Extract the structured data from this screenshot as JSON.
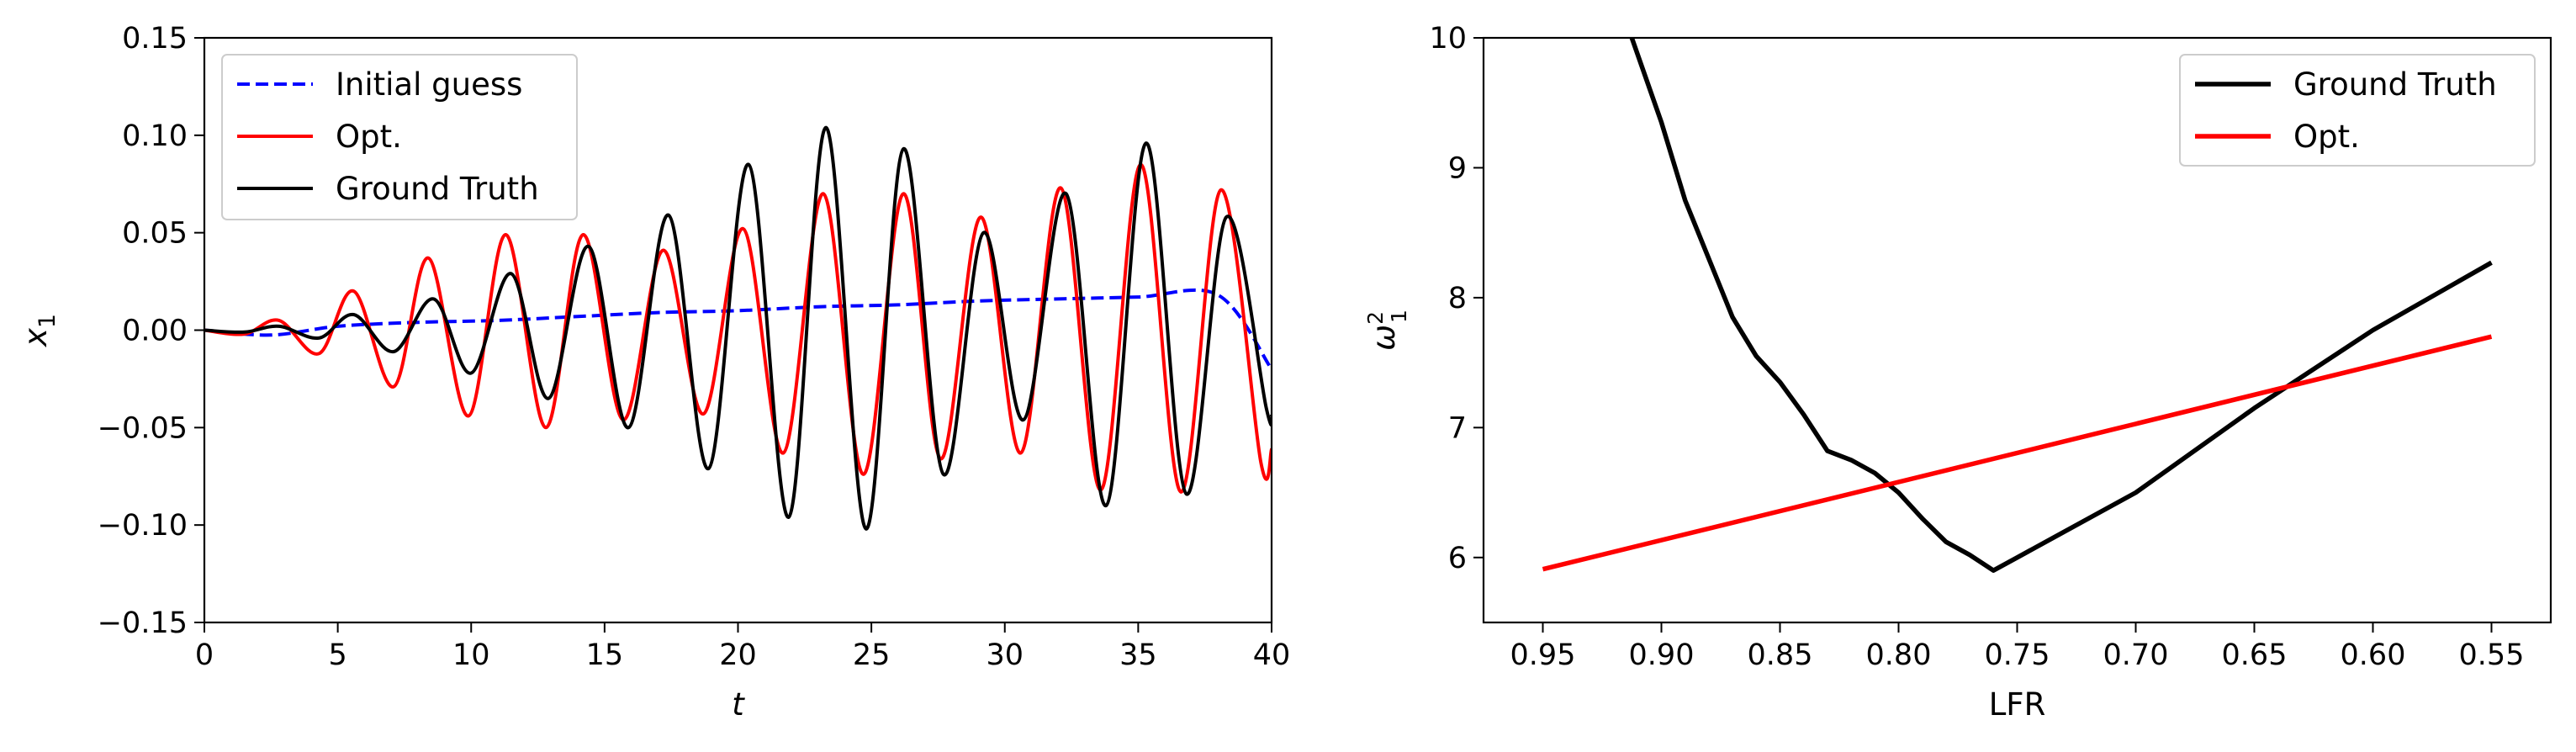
{
  "chart_data": [
    {
      "type": "line",
      "title": "",
      "xlabel": "t",
      "ylabel_base": "x",
      "ylabel_sub": "1",
      "xlim": [
        0,
        40
      ],
      "ylim": [
        -0.15,
        0.15
      ],
      "x_ticks": [
        {
          "value": 0,
          "label": "0"
        },
        {
          "value": 5,
          "label": "5"
        },
        {
          "value": 10,
          "label": "10"
        },
        {
          "value": 15,
          "label": "15"
        },
        {
          "value": 20,
          "label": "20"
        },
        {
          "value": 25,
          "label": "25"
        },
        {
          "value": 30,
          "label": "30"
        },
        {
          "value": 35,
          "label": "35"
        },
        {
          "value": 40,
          "label": "40"
        }
      ],
      "y_ticks": [
        {
          "value": 0.15,
          "label": "0.15"
        },
        {
          "value": 0.1,
          "label": "0.10"
        },
        {
          "value": 0.05,
          "label": "0.05"
        },
        {
          "value": 0.0,
          "label": "0.00"
        },
        {
          "value": -0.05,
          "label": "−0.05"
        },
        {
          "value": -0.1,
          "label": "−0.10"
        },
        {
          "value": -0.15,
          "label": "−0.15"
        }
      ],
      "grid": false,
      "legend_position": "top-left",
      "series": [
        {
          "name": "Initial guess",
          "color": "#0000ff",
          "style": "dashed",
          "x": [
            0,
            2.5,
            5.0,
            8.0,
            11.0,
            14.0,
            17.0,
            20.0,
            23.0,
            26.0,
            29.0,
            32.0,
            35.0,
            38.0,
            40.0
          ],
          "y": [
            0.0,
            -0.0025,
            0.002,
            0.004,
            0.005,
            0.007,
            0.009,
            0.01,
            0.012,
            0.013,
            0.015,
            0.016,
            0.017,
            0.018,
            -0.02
          ]
        },
        {
          "name": "Opt.",
          "color": "#ff0000",
          "style": "solid",
          "x": [
            0,
            1.5,
            2.8,
            4.3,
            5.6,
            7.1,
            8.4,
            9.9,
            11.3,
            12.8,
            14.2,
            15.7,
            17.2,
            18.7,
            20.2,
            21.7,
            23.2,
            24.7,
            26.2,
            27.6,
            29.1,
            30.6,
            32.1,
            33.6,
            35.1,
            36.6,
            38.1,
            39.6,
            40.0
          ],
          "y": [
            0.0,
            -0.002,
            0.005,
            -0.012,
            0.02,
            -0.029,
            0.037,
            -0.044,
            0.049,
            -0.05,
            0.049,
            -0.046,
            0.041,
            -0.043,
            0.052,
            -0.063,
            0.07,
            -0.074,
            0.07,
            -0.066,
            0.058,
            -0.063,
            0.073,
            -0.082,
            0.085,
            -0.083,
            0.072,
            -0.068,
            -0.061
          ]
        },
        {
          "name": "Ground Truth",
          "color": "#000000",
          "style": "solid",
          "x": [
            0,
            1.5,
            2.8,
            4.3,
            5.6,
            7.1,
            8.6,
            10.0,
            11.5,
            12.9,
            14.4,
            15.9,
            17.4,
            18.9,
            20.4,
            21.9,
            23.3,
            24.8,
            26.2,
            27.7,
            29.2,
            30.7,
            32.3,
            33.8,
            35.3,
            36.8,
            38.3,
            39.8,
            40.0
          ],
          "y": [
            0.0,
            -0.001,
            0.002,
            -0.004,
            0.008,
            -0.011,
            0.016,
            -0.022,
            0.029,
            -0.035,
            0.043,
            -0.05,
            0.059,
            -0.071,
            0.085,
            -0.096,
            0.104,
            -0.102,
            0.093,
            -0.074,
            0.05,
            -0.046,
            0.07,
            -0.09,
            0.096,
            -0.084,
            0.058,
            -0.04,
            -0.044
          ]
        }
      ]
    },
    {
      "type": "line",
      "title": "",
      "xlabel": "LFR",
      "ylabel_base": "ω",
      "ylabel_sub": "1",
      "ylabel_sup": "2",
      "xlim": [
        0.975,
        0.525
      ],
      "ylim": [
        5.5,
        10
      ],
      "x_inverted": true,
      "x_ticks": [
        {
          "value": 0.95,
          "label": "0.95"
        },
        {
          "value": 0.9,
          "label": "0.90"
        },
        {
          "value": 0.85,
          "label": "0.85"
        },
        {
          "value": 0.8,
          "label": "0.80"
        },
        {
          "value": 0.75,
          "label": "0.75"
        },
        {
          "value": 0.7,
          "label": "0.70"
        },
        {
          "value": 0.65,
          "label": "0.65"
        },
        {
          "value": 0.6,
          "label": "0.60"
        },
        {
          "value": 0.55,
          "label": "0.55"
        }
      ],
      "y_ticks": [
        {
          "value": 10,
          "label": "10"
        },
        {
          "value": 9,
          "label": "9"
        },
        {
          "value": 8,
          "label": "8"
        },
        {
          "value": 7,
          "label": "7"
        },
        {
          "value": 6,
          "label": "6"
        }
      ],
      "grid": false,
      "legend_position": "top-right",
      "series": [
        {
          "name": "Ground Truth",
          "color": "#000000",
          "style": "solid",
          "x": [
            0.9125,
            0.9,
            0.89,
            0.88,
            0.87,
            0.86,
            0.85,
            0.84,
            0.83,
            0.82,
            0.81,
            0.8,
            0.79,
            0.78,
            0.77,
            0.76,
            0.75,
            0.7,
            0.65,
            0.6,
            0.55
          ],
          "y": [
            10.0,
            9.35,
            8.75,
            8.3,
            7.85,
            7.55,
            7.35,
            7.1,
            6.82,
            6.75,
            6.65,
            6.5,
            6.3,
            6.12,
            6.02,
            5.9,
            6.0,
            6.5,
            7.15,
            7.75,
            8.27
          ]
        },
        {
          "name": "Opt.",
          "color": "#ff0000",
          "style": "solid",
          "x": [
            0.95,
            0.55
          ],
          "y": [
            5.91,
            7.7
          ]
        }
      ]
    }
  ]
}
